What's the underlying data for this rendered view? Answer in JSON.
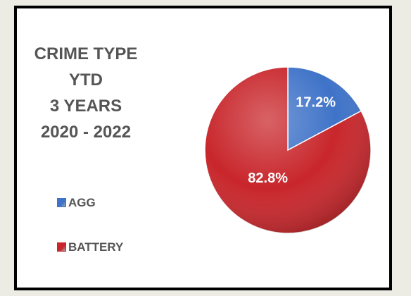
{
  "title_lines": [
    "CRIME TYPE",
    "YTD",
    "3 YEARS",
    "2020 - 2022"
  ],
  "colors": {
    "AGG": "#3f73c8",
    "BATTERY": "#c8262b",
    "text": "#555555",
    "frame": "#000000"
  },
  "legend": [
    {
      "label": "AGG"
    },
    {
      "label": "BATTERY"
    }
  ],
  "chart_data": {
    "type": "pie",
    "title": "CRIME TYPE YTD 3 YEARS 2020 - 2022",
    "categories": [
      "AGG",
      "BATTERY"
    ],
    "values": [
      17.2,
      82.8
    ],
    "data_labels": [
      "17.2%",
      "82.8%"
    ],
    "legend_position": "left"
  }
}
